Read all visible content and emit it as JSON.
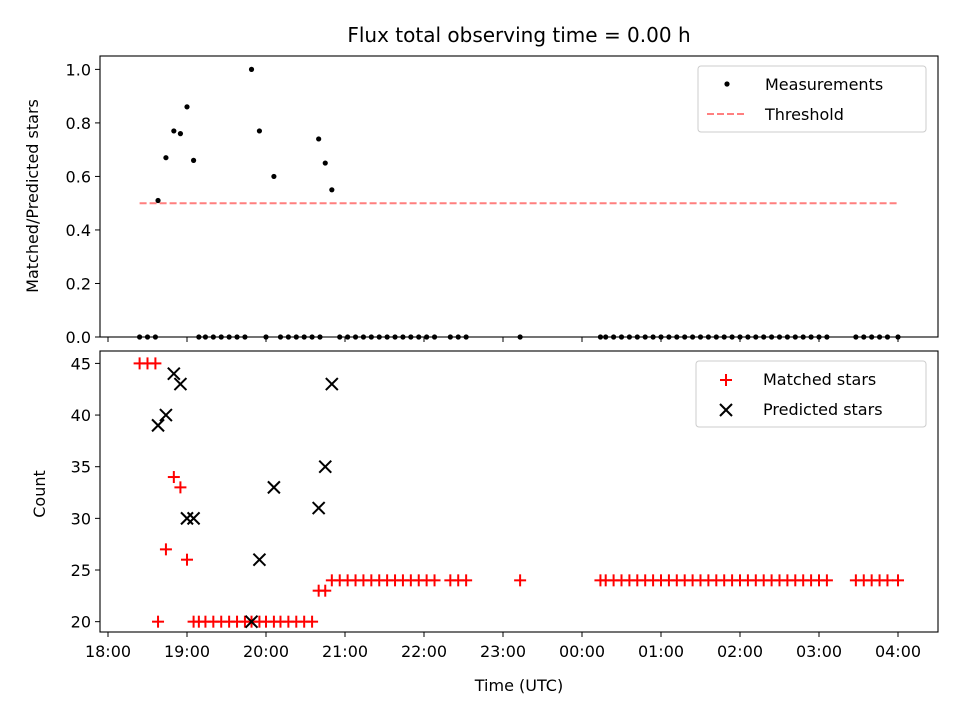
{
  "chart_data": [
    {
      "type": "scatter",
      "title": "Flux total observing time = 0.00 h",
      "xlabel": "",
      "ylabel": "Matched/Predicted stars",
      "xlim": [
        "18:00",
        "04:00 (+1 day)"
      ],
      "ylim": [
        0,
        1.05
      ],
      "y_ticks": [
        "0.0",
        "0.2",
        "0.4",
        "0.6",
        "0.8",
        "1.0"
      ],
      "legend_position": "top-right",
      "grid": false,
      "series": [
        {
          "name": "Measurements",
          "style": "dot",
          "color": "#000000",
          "points": [
            [
              "18:24",
              0
            ],
            [
              "18:30",
              0
            ],
            [
              "18:36",
              0
            ],
            [
              "18:38",
              0.51
            ],
            [
              "18:44",
              0.67
            ],
            [
              "18:50",
              0.77
            ],
            [
              "18:55",
              0.76
            ],
            [
              "19:00",
              0.86
            ],
            [
              "19:05",
              0.66
            ],
            [
              "19:09",
              0
            ],
            [
              "19:14",
              0
            ],
            [
              "19:20",
              0
            ],
            [
              "19:26",
              0
            ],
            [
              "19:32",
              0
            ],
            [
              "19:38",
              0
            ],
            [
              "19:44",
              0
            ],
            [
              "19:49",
              1.0
            ],
            [
              "19:55",
              0.77
            ],
            [
              "20:00",
              0
            ],
            [
              "20:06",
              0.6
            ],
            [
              "20:11",
              0
            ],
            [
              "20:17",
              0
            ],
            [
              "20:23",
              0
            ],
            [
              "20:29",
              0
            ],
            [
              "20:35",
              0
            ],
            [
              "20:41",
              0
            ],
            [
              "20:40",
              0.74
            ],
            [
              "20:45",
              0.65
            ],
            [
              "20:50",
              0.55
            ],
            [
              "20:56",
              0
            ],
            [
              "21:02",
              0
            ],
            [
              "21:08",
              0
            ],
            [
              "21:14",
              0
            ],
            [
              "21:20",
              0
            ],
            [
              "21:26",
              0
            ],
            [
              "21:32",
              0
            ],
            [
              "21:38",
              0
            ],
            [
              "21:44",
              0
            ],
            [
              "21:50",
              0
            ],
            [
              "21:56",
              0
            ],
            [
              "22:02",
              0
            ],
            [
              "22:08",
              0
            ],
            [
              "22:20",
              0
            ],
            [
              "22:26",
              0
            ],
            [
              "22:32",
              0
            ],
            [
              "23:13",
              0
            ],
            [
              "00:14",
              0
            ],
            [
              "00:18",
              0
            ],
            [
              "00:24",
              0
            ],
            [
              "00:30",
              0
            ],
            [
              "00:36",
              0
            ],
            [
              "00:42",
              0
            ],
            [
              "00:48",
              0
            ],
            [
              "00:54",
              0
            ],
            [
              "01:00",
              0
            ],
            [
              "01:06",
              0
            ],
            [
              "01:12",
              0
            ],
            [
              "01:18",
              0
            ],
            [
              "01:24",
              0
            ],
            [
              "01:30",
              0
            ],
            [
              "01:36",
              0
            ],
            [
              "01:42",
              0
            ],
            [
              "01:48",
              0
            ],
            [
              "01:54",
              0
            ],
            [
              "02:00",
              0
            ],
            [
              "02:06",
              0
            ],
            [
              "02:12",
              0
            ],
            [
              "02:18",
              0
            ],
            [
              "02:24",
              0
            ],
            [
              "02:30",
              0
            ],
            [
              "02:36",
              0
            ],
            [
              "02:42",
              0
            ],
            [
              "02:48",
              0
            ],
            [
              "02:54",
              0
            ],
            [
              "03:00",
              0
            ],
            [
              "03:06",
              0
            ],
            [
              "03:28",
              0
            ],
            [
              "03:34",
              0
            ],
            [
              "03:40",
              0
            ],
            [
              "03:46",
              0
            ],
            [
              "03:52",
              0
            ],
            [
              "04:00",
              0
            ]
          ]
        },
        {
          "name": "Threshold",
          "style": "dashed-line",
          "color": "#ff7f7f",
          "points": [
            [
              "18:24",
              0.5
            ],
            [
              "04:00",
              0.5
            ]
          ]
        }
      ]
    },
    {
      "type": "scatter",
      "title": "",
      "xlabel": "Time (UTC)",
      "ylabel": "Count",
      "xlim": [
        "18:00",
        "04:00 (+1 day)"
      ],
      "ylim": [
        19,
        46.2
      ],
      "x_ticks": [
        "18:00",
        "19:00",
        "20:00",
        "21:00",
        "22:00",
        "23:00",
        "00:00",
        "01:00",
        "02:00",
        "03:00",
        "04:00"
      ],
      "y_ticks": [
        "20",
        "25",
        "30",
        "35",
        "40",
        "45"
      ],
      "legend_position": "top-right",
      "grid": false,
      "series": [
        {
          "name": "Matched stars",
          "style": "plus",
          "color": "#ff0000",
          "points": [
            [
              "18:24",
              45
            ],
            [
              "18:30",
              45
            ],
            [
              "18:36",
              45
            ],
            [
              "18:38",
              20
            ],
            [
              "18:44",
              27
            ],
            [
              "18:50",
              34
            ],
            [
              "18:55",
              33
            ],
            [
              "19:00",
              26
            ],
            [
              "19:05",
              20
            ],
            [
              "19:09",
              20
            ],
            [
              "19:14",
              20
            ],
            [
              "19:20",
              20
            ],
            [
              "19:26",
              20
            ],
            [
              "19:32",
              20
            ],
            [
              "19:38",
              20
            ],
            [
              "19:44",
              20
            ],
            [
              "19:49",
              20
            ],
            [
              "19:55",
              20
            ],
            [
              "20:00",
              20
            ],
            [
              "20:06",
              20
            ],
            [
              "20:11",
              20
            ],
            [
              "20:17",
              20
            ],
            [
              "20:23",
              20
            ],
            [
              "20:29",
              20
            ],
            [
              "20:35",
              20
            ],
            [
              "20:40",
              23
            ],
            [
              "20:45",
              23
            ],
            [
              "20:50",
              24
            ],
            [
              "20:56",
              24
            ],
            [
              "21:02",
              24
            ],
            [
              "21:08",
              24
            ],
            [
              "21:14",
              24
            ],
            [
              "21:20",
              24
            ],
            [
              "21:26",
              24
            ],
            [
              "21:32",
              24
            ],
            [
              "21:38",
              24
            ],
            [
              "21:44",
              24
            ],
            [
              "21:50",
              24
            ],
            [
              "21:56",
              24
            ],
            [
              "22:02",
              24
            ],
            [
              "22:08",
              24
            ],
            [
              "22:20",
              24
            ],
            [
              "22:26",
              24
            ],
            [
              "22:32",
              24
            ],
            [
              "23:13",
              24
            ],
            [
              "00:14",
              24
            ],
            [
              "00:18",
              24
            ],
            [
              "00:24",
              24
            ],
            [
              "00:30",
              24
            ],
            [
              "00:36",
              24
            ],
            [
              "00:42",
              24
            ],
            [
              "00:48",
              24
            ],
            [
              "00:54",
              24
            ],
            [
              "01:00",
              24
            ],
            [
              "01:06",
              24
            ],
            [
              "01:12",
              24
            ],
            [
              "01:18",
              24
            ],
            [
              "01:24",
              24
            ],
            [
              "01:30",
              24
            ],
            [
              "01:36",
              24
            ],
            [
              "01:42",
              24
            ],
            [
              "01:48",
              24
            ],
            [
              "01:54",
              24
            ],
            [
              "02:00",
              24
            ],
            [
              "02:06",
              24
            ],
            [
              "02:12",
              24
            ],
            [
              "02:18",
              24
            ],
            [
              "02:24",
              24
            ],
            [
              "02:30",
              24
            ],
            [
              "02:36",
              24
            ],
            [
              "02:42",
              24
            ],
            [
              "02:48",
              24
            ],
            [
              "02:54",
              24
            ],
            [
              "03:00",
              24
            ],
            [
              "03:06",
              24
            ],
            [
              "03:28",
              24
            ],
            [
              "03:34",
              24
            ],
            [
              "03:40",
              24
            ],
            [
              "03:46",
              24
            ],
            [
              "03:52",
              24
            ],
            [
              "04:00",
              24
            ]
          ]
        },
        {
          "name": "Predicted stars",
          "style": "x",
          "color": "#000000",
          "points": [
            [
              "18:38",
              39
            ],
            [
              "18:44",
              40
            ],
            [
              "18:50",
              44
            ],
            [
              "18:55",
              43
            ],
            [
              "19:00",
              30
            ],
            [
              "19:05",
              30
            ],
            [
              "19:49",
              20
            ],
            [
              "19:55",
              26
            ],
            [
              "20:06",
              33
            ],
            [
              "20:40",
              31
            ],
            [
              "20:45",
              35
            ],
            [
              "20:50",
              43
            ]
          ]
        }
      ]
    }
  ]
}
